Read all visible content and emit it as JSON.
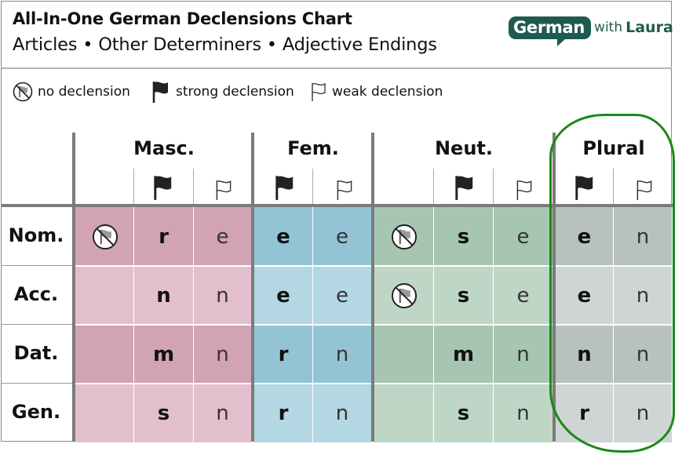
{
  "header": {
    "title": "All-In-One German Declensions Chart",
    "subtitle": "Articles • Other Determiners • Adjective Endings",
    "logo": {
      "brand": "German",
      "with": "with",
      "name": "Laura"
    }
  },
  "legend": [
    {
      "icon": "crossed-flag-icon",
      "label": "no declension"
    },
    {
      "icon": "filled-flag-icon",
      "label": "strong declension"
    },
    {
      "icon": "outline-flag-icon",
      "label": "weak declension"
    }
  ],
  "columns": [
    {
      "label": "Masc.",
      "color_dark": "#d1a3b4",
      "color_light": "#e2bfcc"
    },
    {
      "label": "Fem.",
      "color_dark": "#93c4d6",
      "color_light": "#b3d7e3"
    },
    {
      "label": "Neut.",
      "color_dark": "#a7c6b2",
      "color_light": "#bed6c6"
    },
    {
      "label": "Plural",
      "color_dark": "#b7c1c0",
      "color_light": "#cfd5d5"
    }
  ],
  "rows": [
    {
      "label": "Nom.",
      "masc": [
        "nodecl",
        "r",
        "e"
      ],
      "fem": [
        "e",
        "e"
      ],
      "neut": [
        "nodecl",
        "s",
        "e"
      ],
      "plural": [
        "e",
        "n"
      ]
    },
    {
      "label": "Acc.",
      "masc": [
        "",
        "n",
        "n"
      ],
      "fem": [
        "e",
        "e"
      ],
      "neut": [
        "nodecl",
        "s",
        "e"
      ],
      "plural": [
        "e",
        "n"
      ]
    },
    {
      "label": "Dat.",
      "masc": [
        "",
        "m",
        "n"
      ],
      "fem": [
        "r",
        "n"
      ],
      "neut": [
        "",
        "m",
        "n"
      ],
      "plural": [
        "n",
        "n"
      ]
    },
    {
      "label": "Gen.",
      "masc": [
        "",
        "s",
        "n"
      ],
      "fem": [
        "r",
        "n"
      ],
      "neut": [
        "",
        "s",
        "n"
      ],
      "plural": [
        "r",
        "n"
      ]
    }
  ],
  "highlight_color": "#1a8a16"
}
